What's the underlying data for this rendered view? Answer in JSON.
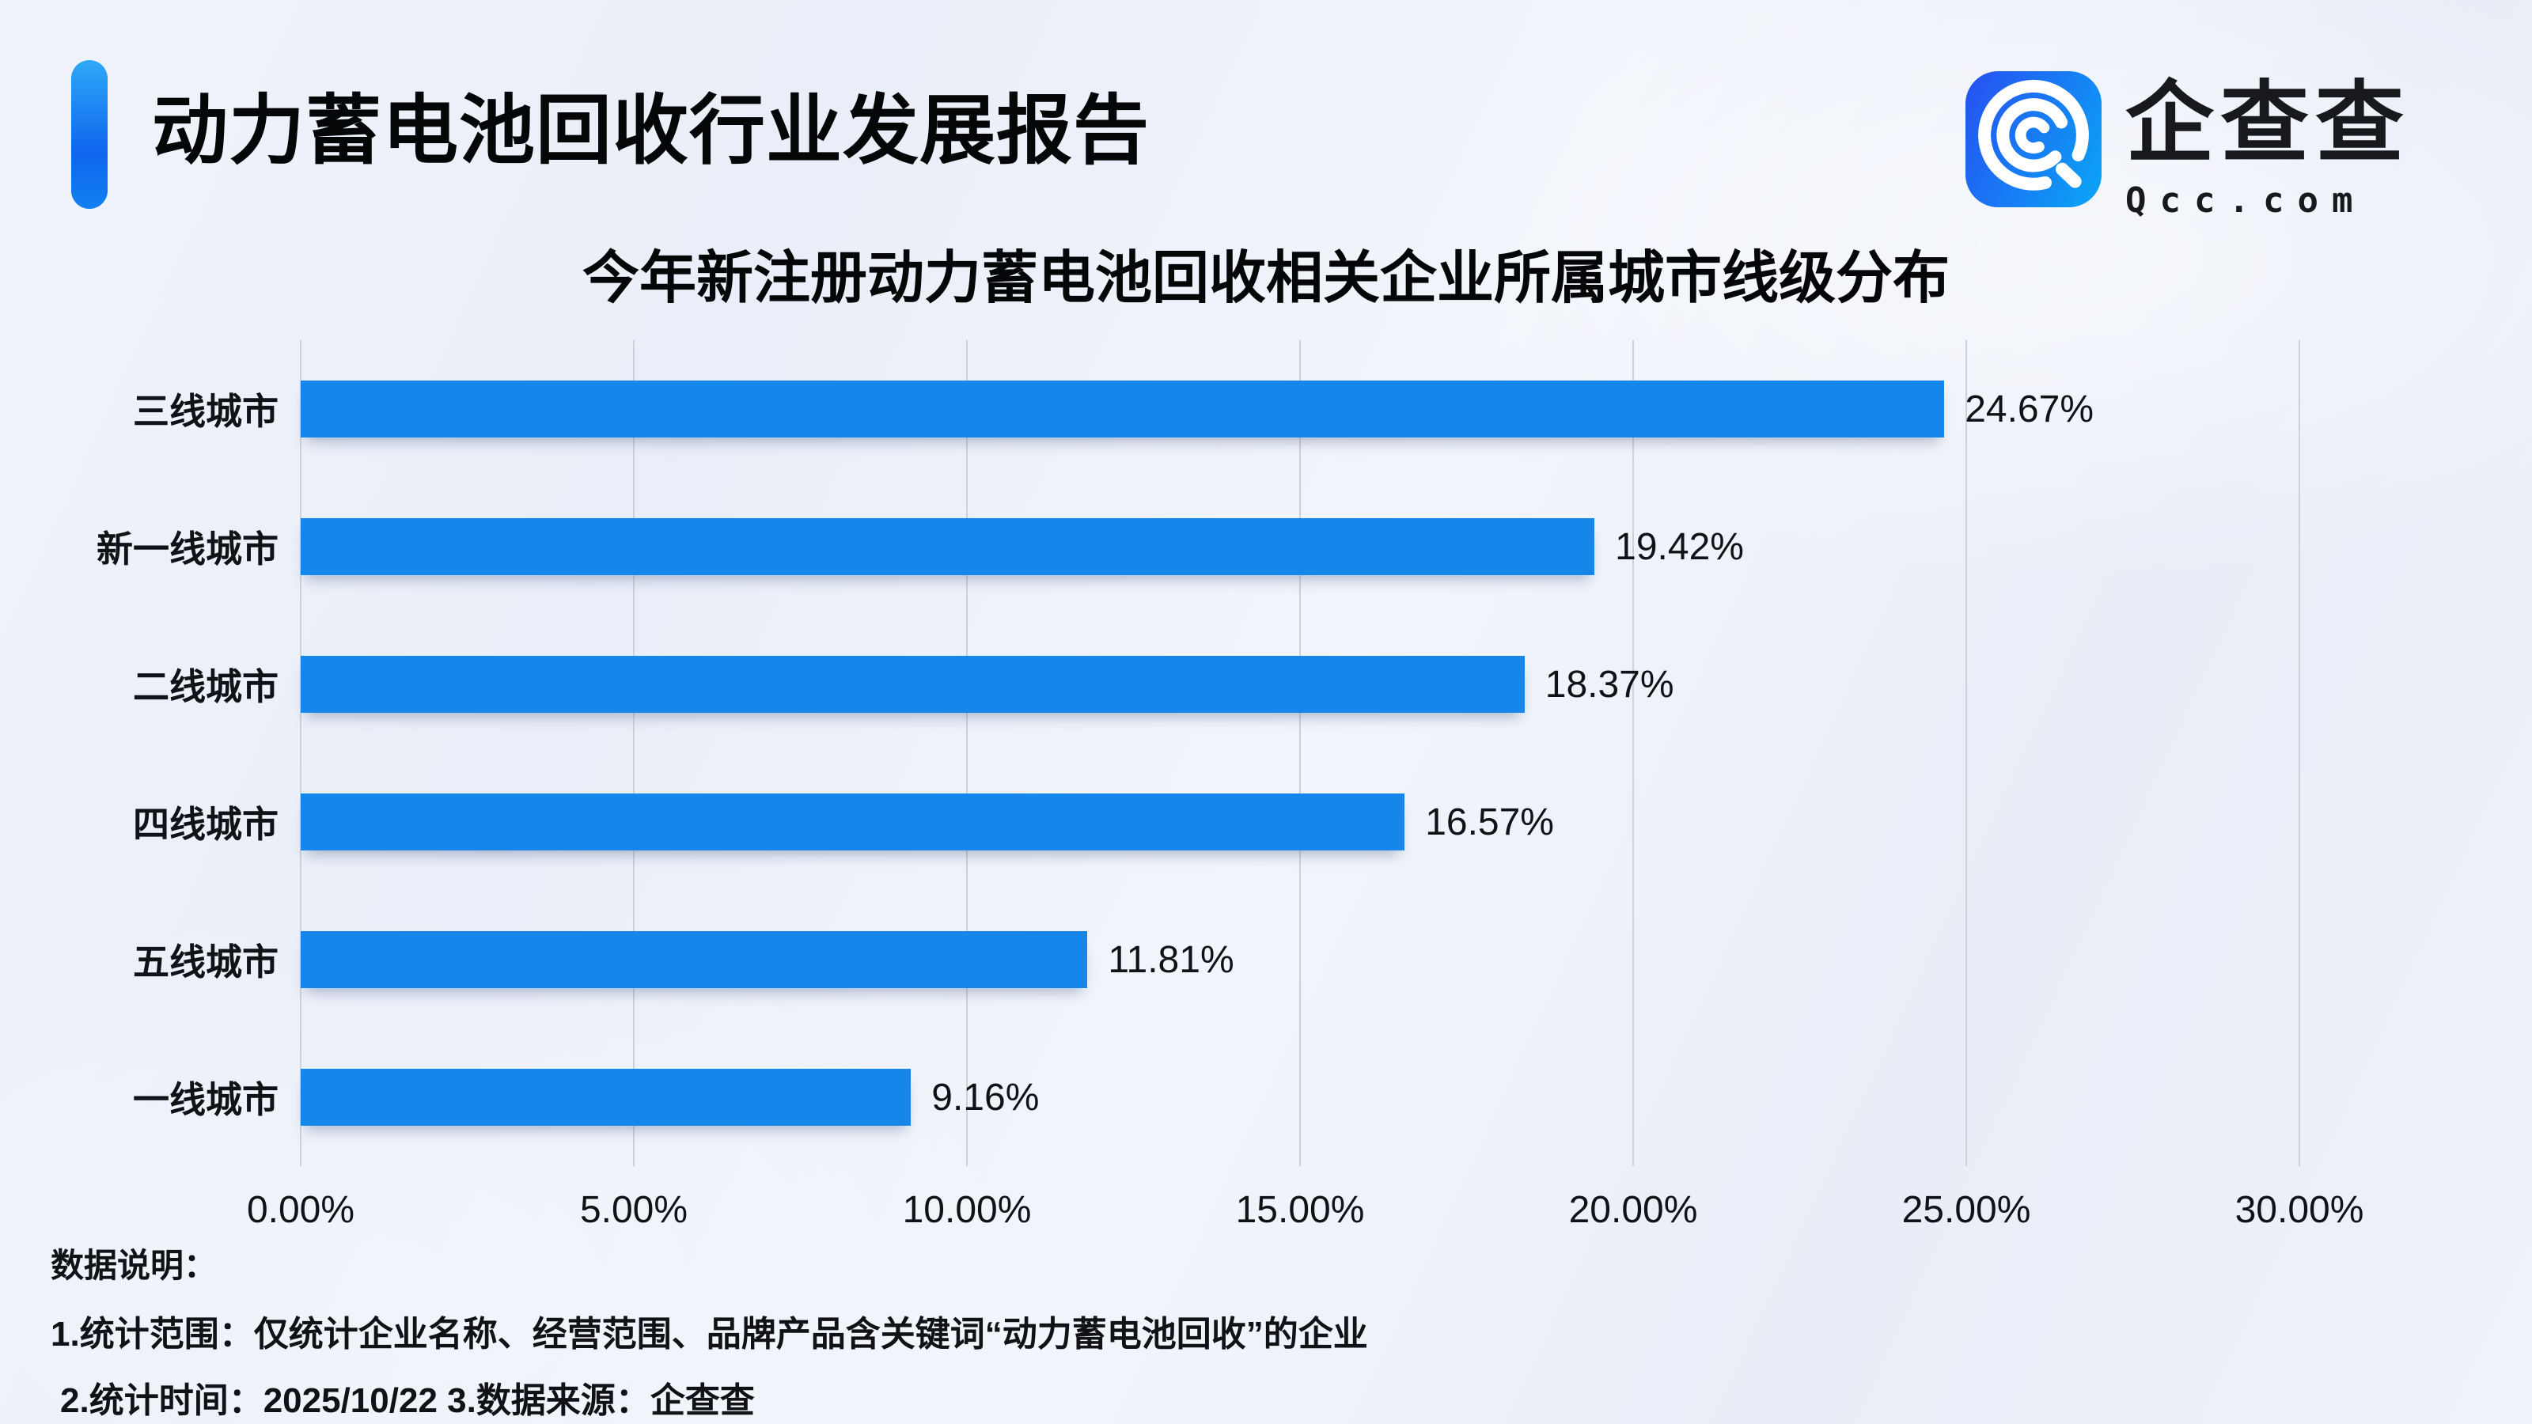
{
  "header": {
    "title": "动力蓄电池回收行业发展报告"
  },
  "logo": {
    "icon": "qcc-magnifier-icon",
    "name": "企查查",
    "domain": "Qcc.com"
  },
  "chart_data": {
    "type": "bar",
    "orientation": "horizontal",
    "title": "今年新注册动力蓄电池回收相关企业所属城市线级分布",
    "categories": [
      "三线城市",
      "新一线城市",
      "二线城市",
      "四线城市",
      "五线城市",
      "一线城市"
    ],
    "values": [
      24.67,
      19.42,
      18.37,
      16.57,
      11.81,
      9.16
    ],
    "value_labels": [
      "24.67%",
      "19.42%",
      "18.37%",
      "16.57%",
      "11.81%",
      "9.16%"
    ],
    "x_ticks": [
      "0.00%",
      "5.00%",
      "10.00%",
      "15.00%",
      "20.00%",
      "25.00%",
      "30.00%"
    ],
    "xlim": [
      0,
      30
    ],
    "xlabel": "",
    "ylabel": "",
    "grid": true,
    "legend": "none",
    "bar_color": "#1586EA"
  },
  "footer": {
    "heading": "数据说明：",
    "notes": [
      "1.统计范围：仅统计企业名称、经营范围、品牌产品含关键词“动力蓄电池回收”的企业",
      "2.统计时间：2025/10/22 3.数据来源：企查查"
    ]
  },
  "colors": {
    "bar": "#1586EA",
    "accent_top": "#2FA8F6",
    "accent_bottom": "#0E66EE",
    "grid": "#CDD1DA",
    "text": "#101216",
    "background": "#EDF1F9"
  }
}
